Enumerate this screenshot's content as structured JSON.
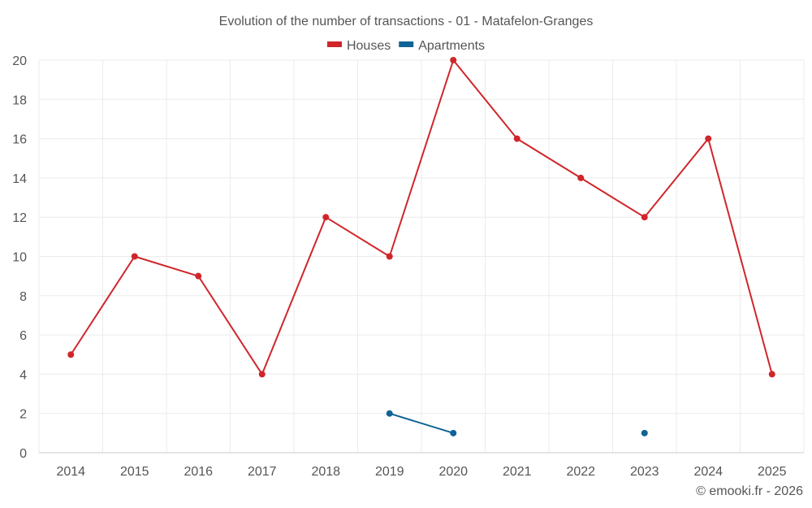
{
  "chart_data": {
    "type": "line",
    "title": "Evolution of the number of transactions - 01 - Matafelon-Granges",
    "categories": [
      "2014",
      "2015",
      "2016",
      "2017",
      "2018",
      "2019",
      "2020",
      "2021",
      "2022",
      "2023",
      "2024",
      "2025"
    ],
    "series": [
      {
        "name": "Houses",
        "color": "#d0262a",
        "values": [
          5,
          10,
          9,
          4,
          12,
          10,
          20,
          16,
          14,
          12,
          16,
          4
        ]
      },
      {
        "name": "Apartments",
        "color": "#0f6396",
        "values": [
          null,
          null,
          null,
          null,
          null,
          2,
          1,
          null,
          null,
          1,
          null,
          null
        ]
      }
    ],
    "yticks": [
      "0",
      "2",
      "4",
      "6",
      "8",
      "10",
      "12",
      "14",
      "16",
      "18",
      "20"
    ],
    "ylim": [
      0,
      20
    ],
    "xlabel": "",
    "ylabel": "",
    "grid": true,
    "legend": "top-center"
  },
  "credit": "© emooki.fr - 2026"
}
